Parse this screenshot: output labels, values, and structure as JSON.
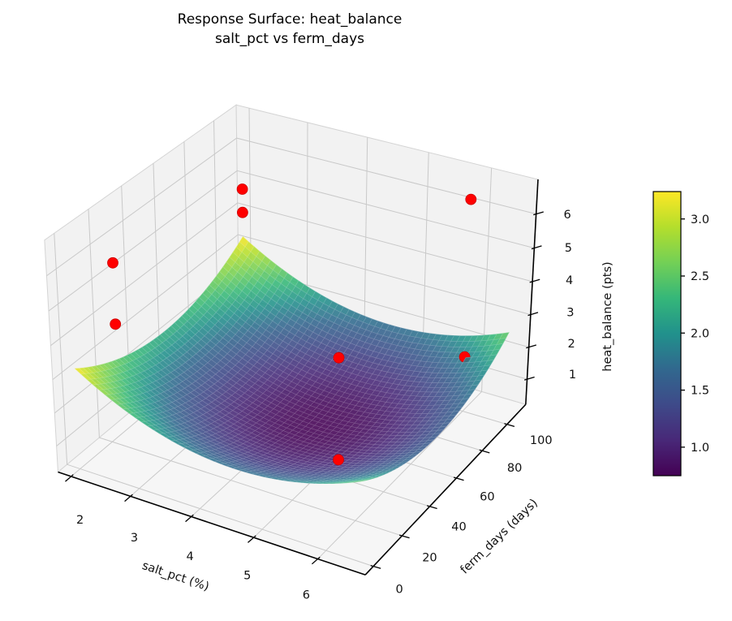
{
  "title": {
    "line1": "Response Surface: heat_balance",
    "line2": "salt_pct vs ferm_days"
  },
  "view": {
    "elev": 30,
    "azim": -60,
    "projection": "persp"
  },
  "axes": {
    "x": {
      "label": "salt_pct (%)",
      "ticks": [
        2,
        3,
        4,
        5,
        6
      ],
      "tick_labels": [
        "2",
        "3",
        "4",
        "5",
        "6"
      ],
      "range": [
        1.775,
        6.725
      ]
    },
    "y": {
      "label": "ferm_days (days)",
      "ticks": [
        0,
        20,
        40,
        60,
        80,
        100
      ],
      "tick_labels": [
        "0",
        "20",
        "40",
        "60",
        "80",
        "100"
      ],
      "range": [
        -5.5,
        115.5
      ]
    },
    "z": {
      "label": "heat_balance (pts)",
      "ticks": [
        1,
        2,
        3,
        4,
        5,
        6
      ],
      "tick_labels": [
        "1",
        "2",
        "3",
        "4",
        "5",
        "6"
      ],
      "range": [
        0.2,
        7.0
      ]
    }
  },
  "colorbar": {
    "colormap": "viridis",
    "vmin": 0.75,
    "vmax": 3.24,
    "ticks": [
      1.0,
      1.5,
      2.0,
      2.5,
      3.0
    ],
    "tick_labels": [
      "1.0",
      "1.5",
      "2.0",
      "2.5",
      "3.0"
    ]
  },
  "chart_data": {
    "type": "surface3d",
    "title": "Response Surface: heat_balance\nsalt_pct vs ferm_days",
    "xlabel": "salt_pct (%)",
    "ylabel": "ferm_days (days)",
    "zlabel": "heat_balance (pts)",
    "surface": {
      "x_range": [
        2.0,
        6.5
      ],
      "y_range": [
        0,
        110
      ],
      "grid_n": 46,
      "model": "z = z0 + ax*(x-cx)^2 + ay*(y-cy)^2",
      "params": {
        "z0": 0.75,
        "ax": 0.22,
        "cx": 4.6,
        "ay": 0.00033,
        "cy": 55
      },
      "z_min": 0.75,
      "z_max": 3.24,
      "colormap": "viridis",
      "alpha": 0.88
    },
    "scatter": {
      "color": "#ff0000",
      "edge_color": "#cc0000",
      "marker_radius_px": 6.5,
      "columns": [
        "salt_pct",
        "ferm_days",
        "heat_balance"
      ],
      "points": [
        [
          2.5,
          90,
          5.6
        ],
        [
          2.5,
          90,
          4.9
        ],
        [
          6.0,
          100,
          6.6
        ],
        [
          2.0,
          25,
          5.4
        ],
        [
          2.0,
          25,
          3.6
        ],
        [
          4.25,
          85,
          1.5
        ],
        [
          6.0,
          100,
          1.9
        ],
        [
          5.5,
          30,
          1.3
        ]
      ]
    },
    "legend": null,
    "grid": true
  },
  "colors": {
    "background": "#ffffff",
    "pane_wall": "#f2f2f2",
    "pane_floor": "#f6f6f6",
    "grid_line": "#c9c9c9",
    "pane_edge": "#d4d4d4",
    "spine": "#000000",
    "text": "#111111"
  }
}
